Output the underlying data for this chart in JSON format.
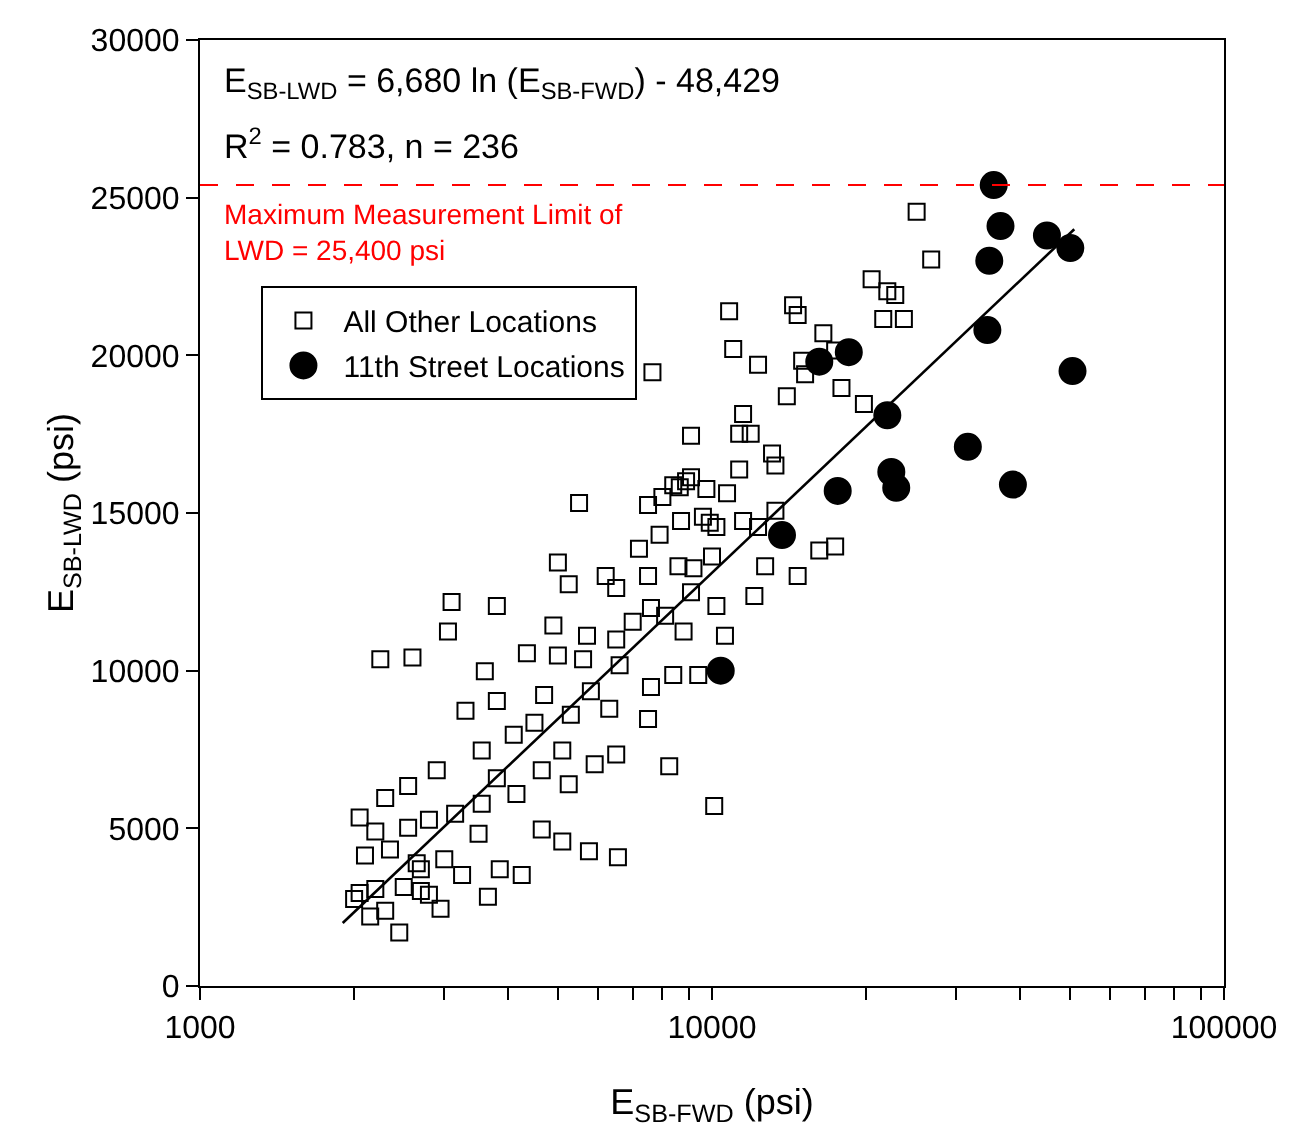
{
  "chart_data": {
    "type": "scatter",
    "xlabel": "E$_{SB-FWD}$ (psi)",
    "ylabel": "E$_{SB-LWD}$ (psi)",
    "log": "x",
    "xlim": [
      1000,
      100000
    ],
    "ylim": [
      0,
      30000
    ],
    "xticks": [
      1000,
      {
        "value": 2000,
        "label": null
      },
      {
        "value": 3000,
        "label": null
      },
      {
        "value": 4000,
        "label": null
      },
      {
        "value": 5000,
        "label": null
      },
      {
        "value": 6000,
        "label": null
      },
      {
        "value": 7000,
        "label": null
      },
      {
        "value": 8000,
        "label": null
      },
      {
        "value": 9000,
        "label": null
      },
      10000,
      {
        "value": 20000,
        "label": null
      },
      {
        "value": 30000,
        "label": null
      },
      {
        "value": 40000,
        "label": null
      },
      {
        "value": 50000,
        "label": null
      },
      {
        "value": 60000,
        "label": null
      },
      {
        "value": 70000,
        "label": null
      },
      {
        "value": 80000,
        "label": null
      },
      {
        "value": 90000,
        "label": null
      },
      100000
    ],
    "yticks": [
      0,
      5000,
      10000,
      15000,
      20000,
      25000,
      30000
    ],
    "grid": false,
    "legend": "top left",
    "annotations": [
      "E$_{SB-LWD}$ = 6,680 ln (E$_{SB-FWD}$) - 48,429",
      "R$^{2}$ = 0.783, n = 236"
    ],
    "ref_lines": [
      {
        "axis": "y",
        "value": 25400,
        "label": "Maximum Measurement Limit of LWD = 25,400 psi",
        "color": "#ff0000",
        "line_style": "dashed"
      }
    ],
    "series": [
      {
        "name": "All Other Locations",
        "marker": "square",
        "color": "#000000",
        "x": [
          25100,
          26800,
          22000,
          23700,
          21600,
          14400,
          14700,
          10800,
          16500,
          11000,
          17400,
          12300,
          15000,
          15200,
          7650,
          17900,
          14000,
          11500,
          11900,
          11300,
          9100,
          13100,
          13300,
          9100,
          8400,
          8650,
          8000,
          10700,
          5500,
          13300,
          9900,
          8700,
          7900,
          7200,
          10000,
          8600,
          9200,
          7500,
          6200,
          5250,
          6500,
          9100,
          10200,
          7600,
          12100,
          8100,
          7000,
          4900,
          5700,
          6500,
          8800,
          10600,
          5000,
          4350,
          5600,
          6600,
          8400,
          9400,
          7600,
          5800,
          4700,
          3800,
          6300,
          5300,
          4500,
          7500,
          3300,
          4100,
          3550,
          5100,
          6500,
          5900,
          4650,
          8250,
          3800,
          2900,
          2550,
          2300,
          5250,
          3550,
          4150,
          3150,
          2800,
          2550,
          2200,
          2050,
          3500,
          4650,
          5100,
          5750,
          6550,
          2350,
          2100,
          3000,
          2700,
          3850,
          4250,
          3250,
          2500,
          2200,
          2800,
          3650,
          2050,
          2300,
          2950,
          2150,
          2000,
          2450,
          2700,
          3600,
          2600,
          2250,
          3050,
          3100,
          3800,
          5000,
          7500,
          8900,
          9750,
          10100,
          2650,
          9600,
          11500,
          10200,
          12700,
          14700,
          12300,
          16200,
          17400,
          11300,
          19800,
          22800,
          20500
        ],
        "values": [
          24550,
          23040,
          22030,
          21150,
          21150,
          21590,
          21280,
          21400,
          20700,
          20200,
          20150,
          19700,
          19830,
          19400,
          19460,
          18960,
          18700,
          18140,
          17510,
          17510,
          17450,
          16890,
          16510,
          16130,
          15880,
          15820,
          15510,
          15630,
          15320,
          15070,
          14690,
          14750,
          14310,
          13870,
          13620,
          13310,
          13250,
          13000,
          13000,
          12740,
          12620,
          12490,
          12050,
          11990,
          12370,
          11740,
          11550,
          11430,
          11110,
          10990,
          11240,
          11110,
          10480,
          10550,
          10360,
          10170,
          9860,
          9860,
          9480,
          9350,
          9230,
          9040,
          8790,
          8600,
          8350,
          8470,
          8730,
          7970,
          7470,
          7470,
          7340,
          7030,
          6840,
          6970,
          6590,
          6840,
          6340,
          5960,
          6400,
          5780,
          6090,
          5460,
          5270,
          5020,
          4900,
          5340,
          4830,
          4960,
          4580,
          4270,
          4080,
          4330,
          4140,
          4020,
          3700,
          3700,
          3520,
          3520,
          3140,
          3080,
          2890,
          2830,
          2950,
          2390,
          2450,
          2200,
          2760,
          1700,
          3010,
          9980,
          10420,
          10360,
          11240,
          12180,
          12050,
          13430,
          15250,
          16010,
          15760,
          5710,
          3890,
          14880,
          14750,
          14560,
          13310,
          13000,
          14560,
          13810,
          13940,
          16380,
          18460,
          21910,
          22410
        ]
      },
      {
        "name": "11th Street Locations",
        "marker": "circle",
        "color": "#000000",
        "x": [
          35500,
          36600,
          34800,
          45100,
          50100,
          34500,
          50600,
          18500,
          16200,
          22000,
          22400,
          22900,
          17600,
          31600,
          38700,
          13700,
          10400
        ],
        "values": [
          25400,
          24100,
          23000,
          23800,
          23400,
          20800,
          19500,
          20100,
          19800,
          18100,
          16300,
          15800,
          15700,
          17100,
          15900,
          14300,
          10000
        ]
      },
      {
        "type": "line",
        "color": "#000000",
        "line_style": "solid",
        "marker": "none",
        "x": [
          1900,
          51000
        ],
        "values": [
          2000,
          24000
        ]
      }
    ]
  }
}
